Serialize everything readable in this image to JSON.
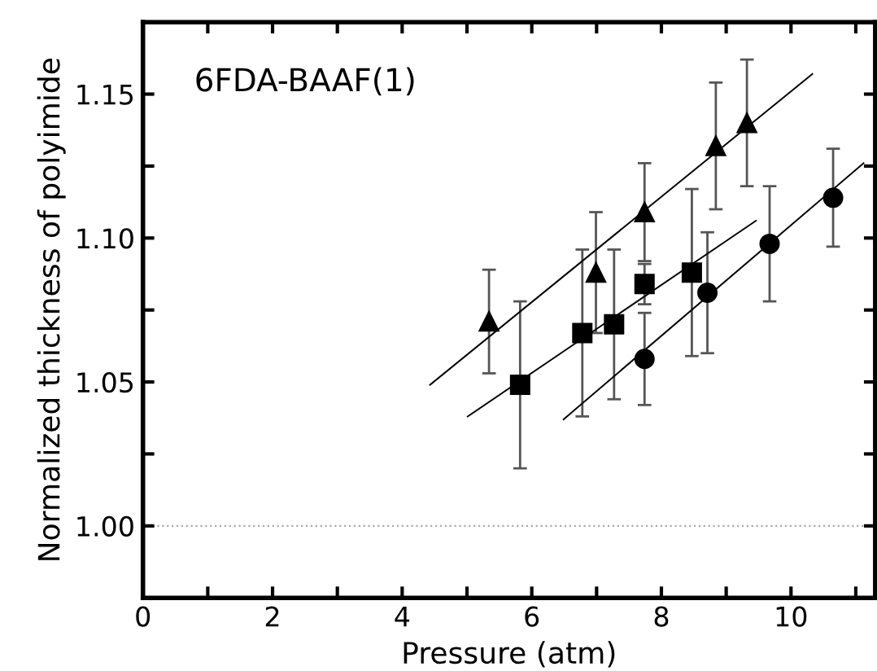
{
  "chart_data": {
    "type": "scatter",
    "xlabel": "Pressure (atm)",
    "ylabel": "Normalized thickness of polyimide",
    "annotations": [
      "6FDA-BAAF(1)"
    ],
    "xlim": [
      0,
      11.3
    ],
    "ylim": [
      0.975,
      1.175
    ],
    "xticks": [
      0,
      {
        "value": 1,
        "label": null
      },
      2,
      {
        "value": 3,
        "label": null
      },
      4,
      {
        "value": 5,
        "label": null
      },
      6,
      {
        "value": 7,
        "label": null
      },
      8,
      {
        "value": 9,
        "label": null
      },
      10,
      {
        "value": 11,
        "label": null
      }
    ],
    "yticks": [
      {
        "value": 1.0,
        "label": "1.00"
      },
      {
        "value": 1.025,
        "label": null
      },
      {
        "value": 1.05,
        "label": "1.05"
      },
      {
        "value": 1.075,
        "label": null
      },
      {
        "value": 1.1,
        "label": "1.10"
      },
      {
        "value": 1.125,
        "label": null
      },
      {
        "value": 1.15,
        "label": "1.15"
      }
    ],
    "grid": false,
    "ref_lines": [
      {
        "axis": "y",
        "value": 1.0,
        "color": "#aaaaaa",
        "line_style": "dotted"
      }
    ],
    "series": [
      {
        "marker": "triangle",
        "color": "#000000",
        "x": [
          5.34,
          6.99,
          7.74,
          8.84,
          9.32
        ],
        "values": [
          1.071,
          1.088,
          1.109,
          1.132,
          1.14
        ],
        "errors": [
          0.018,
          0.021,
          0.017,
          0.022,
          0.022
        ]
      },
      {
        "marker": "square",
        "color": "#000000",
        "x": [
          5.82,
          6.78,
          7.27,
          7.74,
          8.47
        ],
        "values": [
          1.049,
          1.067,
          1.07,
          1.084,
          1.088
        ],
        "errors": [
          0.029,
          0.029,
          0.026,
          0.007,
          0.029
        ]
      },
      {
        "marker": "circle",
        "color": "#000000",
        "x": [
          7.74,
          8.71,
          9.67,
          10.65
        ],
        "values": [
          1.058,
          1.081,
          1.098,
          1.114
        ],
        "errors": [
          0.016,
          0.021,
          0.02,
          0.017
        ]
      },
      {
        "type": "line",
        "color": "#000000",
        "x": [
          4.43,
          10.33
        ],
        "values": [
          1.049,
          1.157
        ]
      },
      {
        "type": "line",
        "color": "#000000",
        "x": [
          5.01,
          9.46
        ],
        "values": [
          1.038,
          1.106
        ]
      },
      {
        "type": "line",
        "color": "#000000",
        "x": [
          6.49,
          11.12
        ],
        "values": [
          1.037,
          1.126
        ]
      }
    ]
  }
}
